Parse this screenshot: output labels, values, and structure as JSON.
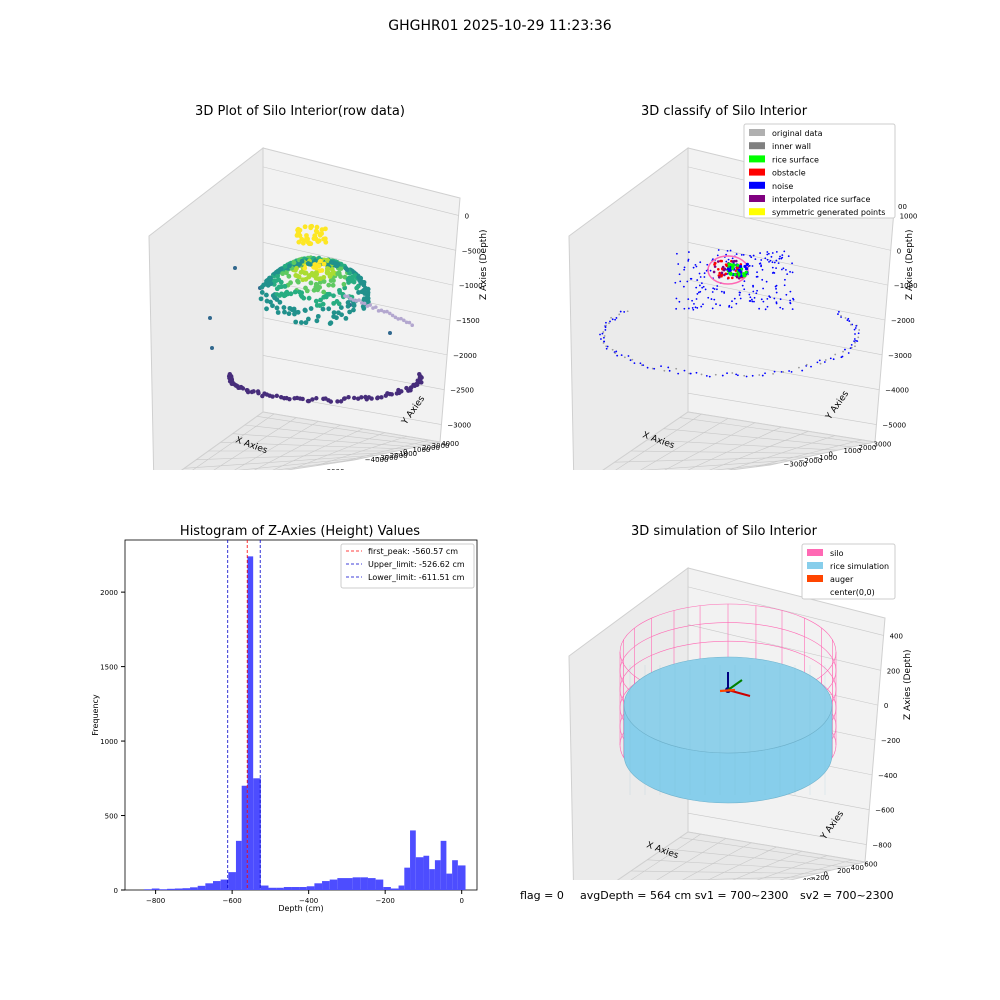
{
  "figure": {
    "suptitle": "GHGHR01 2025-10-29 11:23:36"
  },
  "colors": {
    "pane_fill": "#f2f2f2",
    "pane_side": "#ebebeb",
    "grid": "#c8c8c8",
    "hist_bar": "#4d4dff",
    "first_peak": "#ff0000",
    "limit_lines": "#0000cc"
  },
  "chart_data": [
    {
      "type": "scatter",
      "panel": "3d-raw",
      "title": "3D Plot of Silo Interior(row data)",
      "xlabel": "X Axies",
      "ylabel": "Y Axies",
      "zlabel": "Z Axies (Depth)",
      "x_ticks": [
        "−4000",
        "−3000",
        "−2000",
        "−1000",
        "0",
        "1000",
        "2000",
        "3000"
      ],
      "y_ticks": [
        "−4000",
        "−3000",
        "−2000",
        "−1000",
        "0",
        "1000",
        "2000",
        "3000",
        "4000"
      ],
      "z_ticks": [
        "0",
        "−500",
        "−1000",
        "−1500",
        "−2000",
        "−2500",
        "−3000"
      ],
      "colormap": "viridis",
      "xlim": [
        -4000,
        3500
      ],
      "ylim": [
        -4000,
        4000
      ],
      "zlim": [
        -3300,
        0
      ]
    },
    {
      "type": "scatter",
      "panel": "3d-classify",
      "title": "3D classify of Silo Interior",
      "xlabel": "X Axies",
      "ylabel": "Y Axies",
      "zlabel": "Z Axies (Depth)",
      "x_ticks": [
        "−3000",
        "−2000",
        "−1000",
        "0",
        "1000",
        "2000",
        "3000"
      ],
      "y_ticks": [
        "−3000",
        "−2000",
        "−1000",
        "0",
        "1000",
        "2000",
        "3000"
      ],
      "z_ticks": [
        "1000",
        "0",
        "−1000",
        "−2000",
        "−3000",
        "−4000",
        "−5000"
      ],
      "legend": [
        {
          "label": "original data",
          "color": "#b0b0b0"
        },
        {
          "label": "inner wall",
          "color": "#808080"
        },
        {
          "label": "rice surface",
          "color": "#00ff00"
        },
        {
          "label": "obstacle",
          "color": "#ff0000"
        },
        {
          "label": "noise",
          "color": "#0000ff"
        },
        {
          "label": "interpolated rice surface",
          "color": "#800080"
        },
        {
          "label": "symmetric generated points",
          "color": "#ffff00"
        }
      ],
      "legend_partial_tick": "00",
      "legend_position": "top-right"
    },
    {
      "type": "bar",
      "panel": "histogram",
      "title": "Histogram of Z-Axies (Height) Values",
      "xlabel": "Depth (cm)",
      "ylabel": "Frequency",
      "xlim": [
        -880,
        40
      ],
      "ylim": [
        0,
        2350
      ],
      "x_ticks": [
        -800,
        -600,
        -400,
        -200,
        0
      ],
      "y_ticks": [
        0,
        500,
        1000,
        1500,
        2000
      ],
      "bin_width": 20,
      "bins": [
        {
          "start": -830,
          "count": 5
        },
        {
          "start": -810,
          "count": 10
        },
        {
          "start": -790,
          "count": 5
        },
        {
          "start": -770,
          "count": 8
        },
        {
          "start": -750,
          "count": 10
        },
        {
          "start": -730,
          "count": 12
        },
        {
          "start": -710,
          "count": 18
        },
        {
          "start": -690,
          "count": 28
        },
        {
          "start": -670,
          "count": 45
        },
        {
          "start": -650,
          "count": 60
        },
        {
          "start": -630,
          "count": 70
        },
        {
          "start": -610,
          "count": 120
        },
        {
          "start": -590,
          "count": 330
        },
        {
          "start": -575,
          "count": 700
        },
        {
          "start": -560,
          "count": 2240
        },
        {
          "start": -545,
          "count": 750
        },
        {
          "start": -525,
          "count": 30
        },
        {
          "start": -505,
          "count": 15
        },
        {
          "start": -485,
          "count": 15
        },
        {
          "start": -465,
          "count": 20
        },
        {
          "start": -445,
          "count": 20
        },
        {
          "start": -425,
          "count": 20
        },
        {
          "start": -405,
          "count": 25
        },
        {
          "start": -385,
          "count": 45
        },
        {
          "start": -365,
          "count": 60
        },
        {
          "start": -345,
          "count": 70
        },
        {
          "start": -325,
          "count": 80
        },
        {
          "start": -305,
          "count": 80
        },
        {
          "start": -285,
          "count": 85
        },
        {
          "start": -265,
          "count": 85
        },
        {
          "start": -245,
          "count": 80
        },
        {
          "start": -225,
          "count": 70
        },
        {
          "start": -205,
          "count": 20
        },
        {
          "start": -185,
          "count": 10
        },
        {
          "start": -165,
          "count": 30
        },
        {
          "start": -150,
          "count": 150
        },
        {
          "start": -135,
          "count": 400
        },
        {
          "start": -120,
          "count": 220
        },
        {
          "start": -100,
          "count": 230
        },
        {
          "start": -85,
          "count": 140
        },
        {
          "start": -70,
          "count": 200
        },
        {
          "start": -55,
          "count": 330
        },
        {
          "start": -40,
          "count": 110
        },
        {
          "start": -25,
          "count": 200
        },
        {
          "start": -10,
          "count": 165
        }
      ],
      "vlines": [
        {
          "label": "first_peak: -560.57 cm",
          "value": -560.57,
          "color": "#ff0000"
        },
        {
          "label": "Upper_limit: -526.62 cm",
          "value": -526.62,
          "color": "#0000cc"
        },
        {
          "label": "Lower_limit: -611.51 cm",
          "value": -611.51,
          "color": "#0000cc"
        }
      ],
      "legend_position": "top-right"
    },
    {
      "type": "scatter",
      "panel": "3d-simulation",
      "title": "3D simulation of Silo Interior",
      "xlabel": "X Axies",
      "ylabel": "Y Axies",
      "zlabel": "Z Axies (Depth)",
      "x_ticks": [
        "−600",
        "−400",
        "−200",
        "0",
        "200",
        "400",
        "600"
      ],
      "y_ticks": [
        "−600",
        "−400",
        "−200",
        "0",
        "200",
        "400",
        "600"
      ],
      "z_ticks": [
        "400",
        "200",
        "0",
        "−200",
        "−400",
        "−600",
        "−800"
      ],
      "legend": [
        {
          "label": "silo",
          "color": "#ff69b4"
        },
        {
          "label": "rice simulation",
          "color": "#87ceeb"
        },
        {
          "label": "auger",
          "color": "#ff4500"
        },
        {
          "label": "center(0,0)",
          "color": ""
        }
      ],
      "legend_position": "top-right"
    }
  ],
  "footer": {
    "flag": "flag = 0",
    "avg": "avgDepth = 564 cm  sv1 = 700~2300",
    "sv2": "sv2 = 700~2300"
  }
}
